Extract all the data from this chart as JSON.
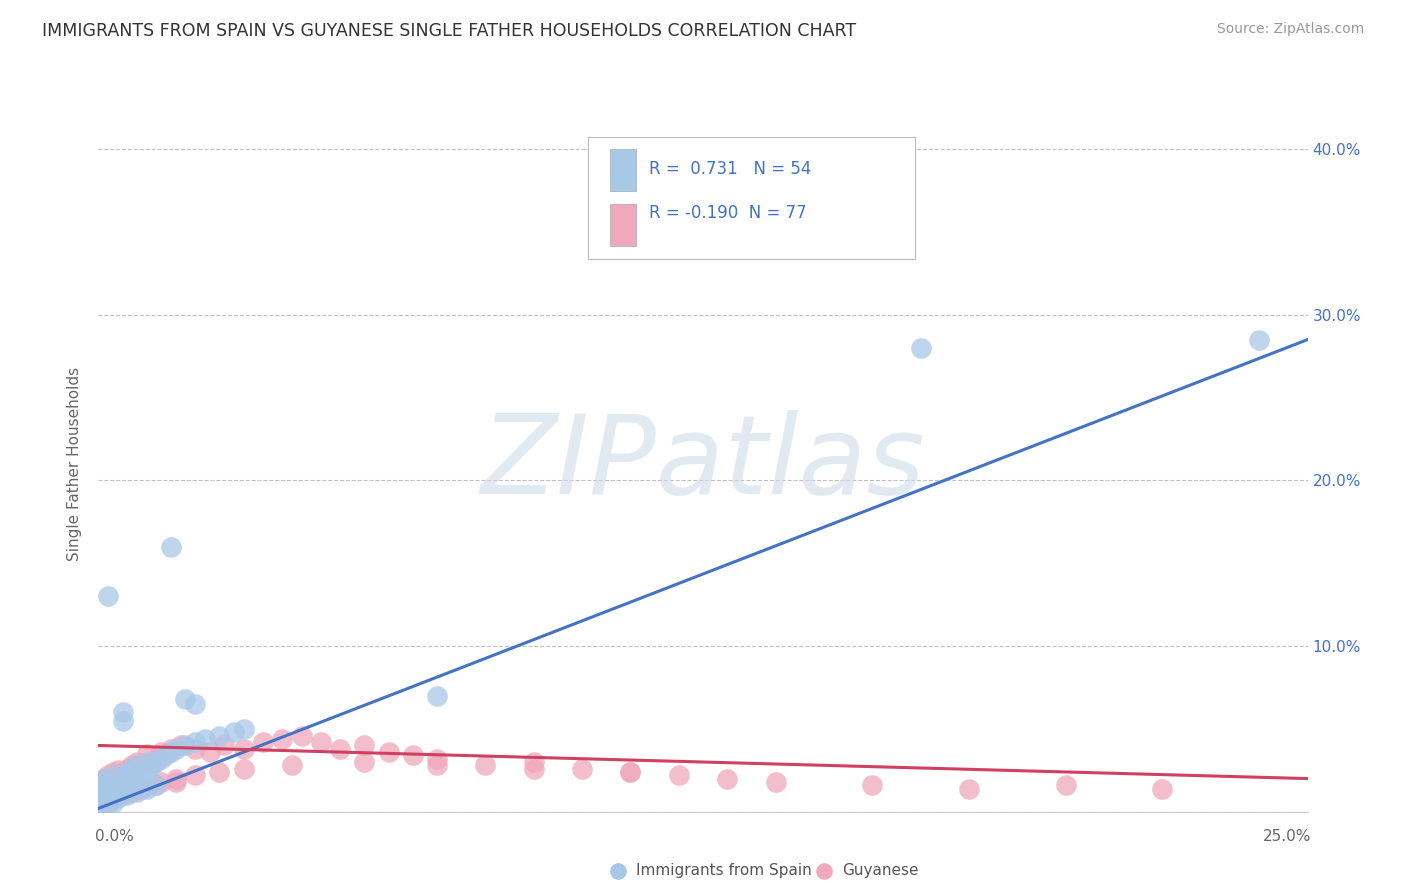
{
  "title": "IMMIGRANTS FROM SPAIN VS GUYANESE SINGLE FATHER HOUSEHOLDS CORRELATION CHART",
  "source": "Source: ZipAtlas.com",
  "ylabel": "Single Father Households",
  "xlim": [
    0,
    0.25
  ],
  "ylim": [
    0,
    0.42
  ],
  "watermark": "ZIPatlas",
  "legend_r1": "R =  0.731",
  "legend_n1": "N = 54",
  "legend_r2": "R = -0.190",
  "legend_n2": "N = 77",
  "color_blue": "#a8c8e8",
  "color_pink": "#f0a8bc",
  "color_blue_line": "#4472c4",
  "color_pink_line": "#d04060",
  "color_text": "#4472c4",
  "blue_trend": [
    0.0,
    0.002,
    0.25,
    0.285
  ],
  "pink_trend": [
    0.0,
    0.04,
    0.25,
    0.02
  ],
  "series1_x": [
    0.0005,
    0.001,
    0.001,
    0.001,
    0.002,
    0.002,
    0.002,
    0.003,
    0.003,
    0.003,
    0.004,
    0.004,
    0.005,
    0.005,
    0.006,
    0.006,
    0.007,
    0.007,
    0.008,
    0.008,
    0.009,
    0.01,
    0.01,
    0.011,
    0.012,
    0.013,
    0.014,
    0.015,
    0.016,
    0.018,
    0.02,
    0.022,
    0.025,
    0.028,
    0.03,
    0.005,
    0.015,
    0.002,
    0.018,
    0.07,
    0.003,
    0.004,
    0.006,
    0.008,
    0.01,
    0.012,
    0.17,
    0.001,
    0.001,
    0.002,
    0.003,
    0.02,
    0.005,
    0.24
  ],
  "series1_y": [
    0.01,
    0.012,
    0.015,
    0.02,
    0.01,
    0.015,
    0.018,
    0.012,
    0.016,
    0.022,
    0.014,
    0.018,
    0.016,
    0.02,
    0.018,
    0.024,
    0.02,
    0.026,
    0.022,
    0.028,
    0.024,
    0.025,
    0.03,
    0.028,
    0.03,
    0.032,
    0.034,
    0.036,
    0.038,
    0.04,
    0.042,
    0.044,
    0.046,
    0.048,
    0.05,
    0.06,
    0.16,
    0.13,
    0.068,
    0.07,
    0.005,
    0.008,
    0.01,
    0.012,
    0.014,
    0.016,
    0.28,
    0.003,
    0.006,
    0.008,
    0.01,
    0.065,
    0.055,
    0.285
  ],
  "series2_x": [
    0.0005,
    0.001,
    0.001,
    0.001,
    0.002,
    0.002,
    0.002,
    0.003,
    0.003,
    0.003,
    0.004,
    0.004,
    0.004,
    0.005,
    0.005,
    0.006,
    0.006,
    0.007,
    0.007,
    0.008,
    0.008,
    0.009,
    0.01,
    0.01,
    0.011,
    0.012,
    0.013,
    0.015,
    0.017,
    0.02,
    0.023,
    0.026,
    0.03,
    0.034,
    0.038,
    0.042,
    0.046,
    0.05,
    0.055,
    0.06,
    0.065,
    0.07,
    0.08,
    0.09,
    0.1,
    0.11,
    0.12,
    0.13,
    0.14,
    0.16,
    0.18,
    0.2,
    0.22,
    0.002,
    0.003,
    0.004,
    0.006,
    0.008,
    0.01,
    0.013,
    0.016,
    0.02,
    0.025,
    0.03,
    0.04,
    0.055,
    0.07,
    0.09,
    0.11,
    0.001,
    0.002,
    0.003,
    0.005,
    0.007,
    0.009,
    0.012,
    0.016
  ],
  "series2_y": [
    0.01,
    0.012,
    0.015,
    0.02,
    0.01,
    0.016,
    0.022,
    0.014,
    0.018,
    0.024,
    0.012,
    0.018,
    0.025,
    0.016,
    0.022,
    0.018,
    0.026,
    0.02,
    0.028,
    0.022,
    0.03,
    0.025,
    0.028,
    0.035,
    0.03,
    0.032,
    0.036,
    0.038,
    0.04,
    0.038,
    0.036,
    0.04,
    0.038,
    0.042,
    0.044,
    0.046,
    0.042,
    0.038,
    0.04,
    0.036,
    0.034,
    0.032,
    0.028,
    0.03,
    0.026,
    0.024,
    0.022,
    0.02,
    0.018,
    0.016,
    0.014,
    0.016,
    0.014,
    0.005,
    0.008,
    0.01,
    0.012,
    0.014,
    0.016,
    0.018,
    0.02,
    0.022,
    0.024,
    0.026,
    0.028,
    0.03,
    0.028,
    0.026,
    0.024,
    0.004,
    0.006,
    0.008,
    0.01,
    0.012,
    0.014,
    0.016,
    0.018
  ]
}
